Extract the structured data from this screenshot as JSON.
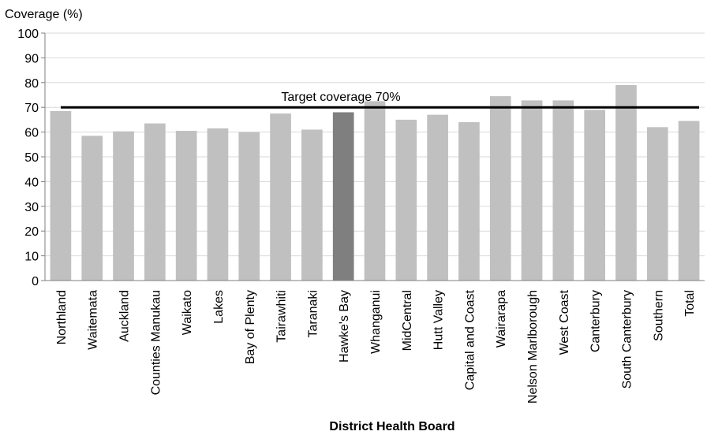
{
  "chart_data": {
    "type": "bar",
    "ylabel": "Coverage (%)",
    "xlabel": "District Health Board",
    "ylim": [
      0,
      100
    ],
    "yticks": [
      0,
      10,
      20,
      30,
      40,
      50,
      60,
      70,
      80,
      90,
      100
    ],
    "grid": true,
    "categories": [
      "Northland",
      "Waitemata",
      "Auckland",
      "Counties Manukau",
      "Waikato",
      "Lakes",
      "Bay of Plenty",
      "Tairawhiti",
      "Taranaki",
      "Hawke's Bay",
      "Whanganui",
      "MidCentral",
      "Hutt Valley",
      "Capital and Coast",
      "Wairarapa",
      "Nelson Marlborough",
      "West Coast",
      "Canterbury",
      "South Canterbury",
      "Southern",
      "Total"
    ],
    "values": [
      68.5,
      58.5,
      60.3,
      63.5,
      60.5,
      61.5,
      60.0,
      67.5,
      61.0,
      68.0,
      72.5,
      65.0,
      67.0,
      64.0,
      74.5,
      72.8,
      72.8,
      69.0,
      79.0,
      62.0,
      64.5
    ],
    "highlight": "Hawke's Bay",
    "colors": {
      "bar": "#c0c0c0",
      "highlight": "#7f7f7f",
      "target": "#000000",
      "grid": "#d9d9d9"
    },
    "target": {
      "value": 70,
      "label": "Target coverage 70%"
    }
  }
}
